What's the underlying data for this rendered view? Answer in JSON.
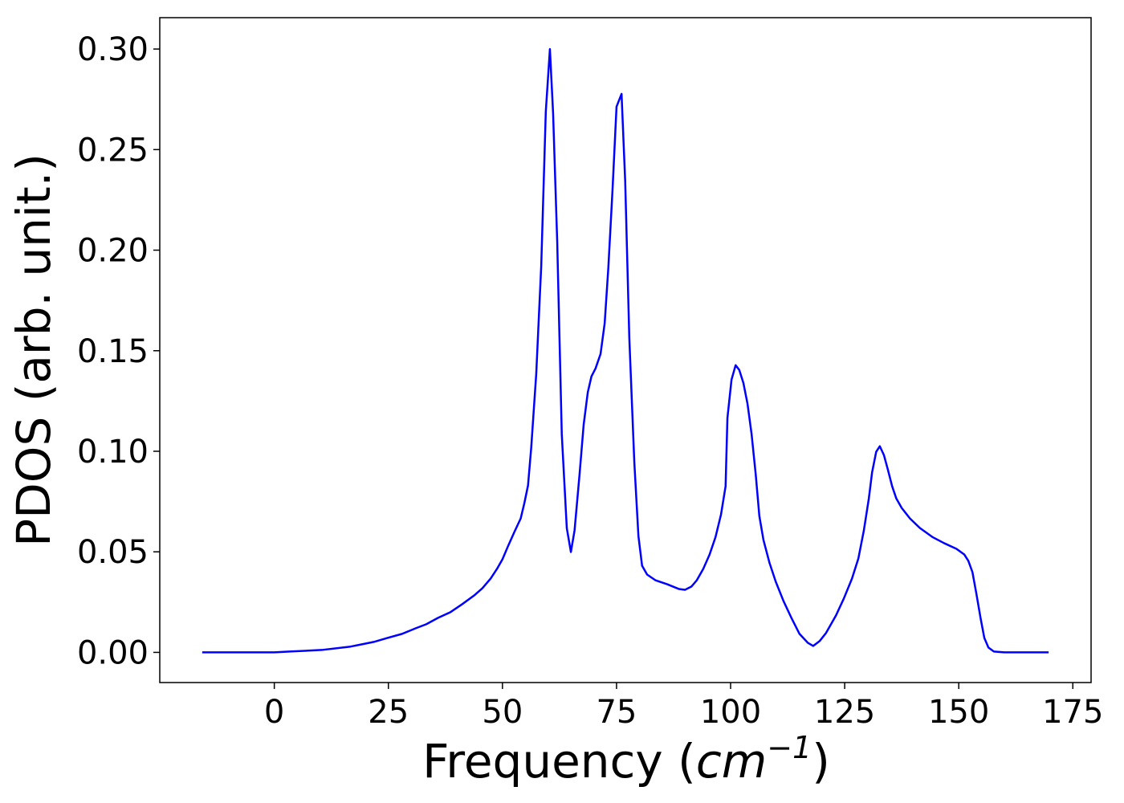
{
  "chart_data": {
    "type": "line",
    "xlabel": [
      "Frequency (",
      "cm",
      "−1",
      ")"
    ],
    "ylabel": "PDOS (arb. unit.)",
    "xlim": [
      -25.1,
      179.0
    ],
    "ylim": [
      -0.015,
      0.3156
    ],
    "xticks": [
      0,
      25,
      50,
      75,
      100,
      125,
      150,
      175
    ],
    "yticks": [
      {
        "value": 0,
        "label": "0.00"
      },
      {
        "value": 0.05,
        "label": "0.05"
      },
      {
        "value": 0.1,
        "label": "0.10"
      },
      {
        "value": 0.15,
        "label": "0.15"
      },
      {
        "value": 0.2,
        "label": "0.20"
      },
      {
        "value": 0.25,
        "label": "0.25"
      },
      {
        "value": 0.3,
        "label": "0.30"
      }
    ],
    "series": [
      {
        "color": "#0000ff",
        "x": [
          -15.8,
          0,
          3.3,
          10.4,
          16.5,
          19.2,
          21.8,
          24.8,
          28.0,
          31.0,
          33.3,
          35.9,
          38.6,
          41.2,
          43.8,
          45.6,
          47.4,
          48.8,
          50.0,
          51.2,
          52.6,
          54.0,
          54.8,
          55.6,
          56.3,
          57.4,
          58.5,
          59.5,
          60.4,
          61.1,
          62.0,
          63.0,
          64.1,
          65.0,
          65.8,
          66.9,
          67.8,
          68.7,
          69.5,
          70.4,
          71.5,
          72.4,
          73.2,
          74.1,
          75.0,
          76.1,
          76.9,
          77.8,
          78.9,
          79.8,
          80.6,
          81.7,
          83.5,
          86.1,
          88.7,
          90.0,
          91.4,
          92.6,
          94.0,
          95.4,
          96.7,
          97.9,
          98.9,
          99.3,
          100.2,
          101.1,
          101.9,
          102.8,
          103.7,
          104.6,
          105.5,
          106.3,
          107.2,
          108.5,
          109.9,
          111.6,
          113.4,
          115.1,
          116.9,
          118.1,
          119.5,
          120.9,
          123.1,
          124.8,
          126.6,
          128.0,
          129.2,
          130.3,
          131.0,
          131.9,
          132.7,
          133.6,
          134.5,
          135.4,
          136.3,
          137.5,
          139.3,
          141.5,
          144.2,
          146.8,
          149.5,
          151.2,
          152.1,
          153.0,
          153.9,
          154.8,
          155.6,
          156.5,
          157.7,
          160.0,
          169.7
        ],
        "values": [
          0,
          0,
          0.0004,
          0.0012,
          0.0028,
          0.004,
          0.0052,
          0.0072,
          0.0092,
          0.012,
          0.014,
          0.0172,
          0.02,
          0.024,
          0.0283,
          0.0319,
          0.0367,
          0.0415,
          0.0463,
          0.0527,
          0.0598,
          0.0666,
          0.0742,
          0.083,
          0.1017,
          0.1384,
          0.1923,
          0.2689,
          0.3,
          0.268,
          0.2043,
          0.1085,
          0.0618,
          0.0499,
          0.0606,
          0.0886,
          0.1133,
          0.1293,
          0.1372,
          0.1412,
          0.1484,
          0.1636,
          0.1911,
          0.229,
          0.2713,
          0.2777,
          0.2342,
          0.1564,
          0.0945,
          0.0578,
          0.0431,
          0.0387,
          0.0359,
          0.0339,
          0.0315,
          0.0311,
          0.0327,
          0.0359,
          0.0415,
          0.0487,
          0.0574,
          0.0686,
          0.0826,
          0.1165,
          0.1356,
          0.1428,
          0.1404,
          0.134,
          0.1237,
          0.1085,
          0.0886,
          0.0678,
          0.0559,
          0.0447,
          0.0351,
          0.0255,
          0.0168,
          0.0092,
          0.0048,
          0.0032,
          0.0056,
          0.0096,
          0.0184,
          0.0267,
          0.0367,
          0.0467,
          0.0606,
          0.0766,
          0.0894,
          0.0997,
          0.1025,
          0.0981,
          0.0906,
          0.0826,
          0.0766,
          0.0718,
          0.0666,
          0.0618,
          0.0574,
          0.0543,
          0.0515,
          0.0487,
          0.0455,
          0.0399,
          0.0287,
          0.0168,
          0.0072,
          0.0024,
          0.0004,
          0,
          0
        ]
      }
    ]
  }
}
